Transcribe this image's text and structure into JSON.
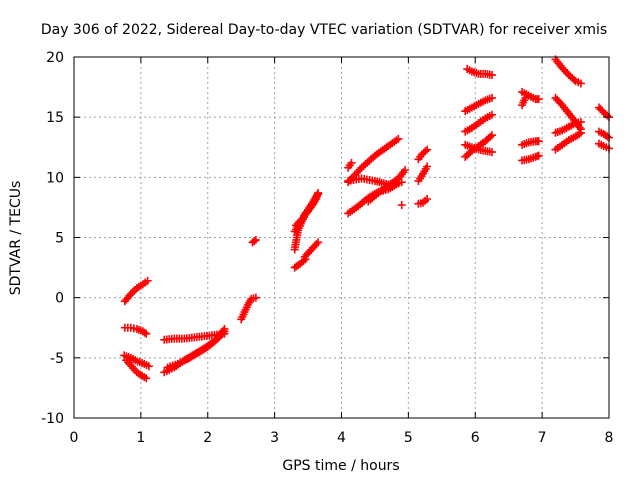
{
  "chart_data": {
    "type": "scatter",
    "title": "Day 306 of 2022, Sidereal Day-to-day VTEC variation (SDTVAR) for receiver xmis",
    "xlabel": "GPS time / hours",
    "ylabel": "SDTVAR / TECUs",
    "xlim": [
      0,
      8
    ],
    "ylim": [
      -10,
      20
    ],
    "xticks": [
      0,
      1,
      2,
      3,
      4,
      5,
      6,
      7,
      8
    ],
    "yticks": [
      -10,
      -5,
      0,
      5,
      10,
      15,
      20
    ],
    "xtick_labels": [
      "0",
      "1",
      "2",
      "3",
      "4",
      "5",
      "6",
      "7",
      "8"
    ],
    "ytick_labels": [
      "-10",
      "-5",
      "0",
      "5",
      "10",
      "15",
      "20"
    ],
    "grid": true,
    "marker": "plus",
    "color": "#ff0000",
    "series": [
      {
        "x": [
          0.76,
          0.85,
          0.94,
          1.03,
          1.1
        ],
        "y": [
          -0.3,
          0.3,
          0.8,
          1.1,
          1.4
        ]
      },
      {
        "x": [
          0.76,
          0.85,
          0.94,
          1.03,
          1.08
        ],
        "y": [
          -2.5,
          -2.5,
          -2.6,
          -2.8,
          -3.0
        ]
      },
      {
        "x": [
          0.75,
          0.85,
          0.95,
          1.05,
          1.12
        ],
        "y": [
          -4.8,
          -5.0,
          -5.3,
          -5.5,
          -5.7
        ]
      },
      {
        "x": [
          0.78,
          0.86,
          0.94,
          1.02,
          1.08
        ],
        "y": [
          -5.2,
          -5.7,
          -6.2,
          -6.5,
          -6.7
        ]
      },
      {
        "x": [
          1.35,
          1.5,
          1.65,
          1.8,
          1.95,
          2.1,
          2.25
        ],
        "y": [
          -6.2,
          -5.8,
          -5.2,
          -4.7,
          -4.2,
          -3.6,
          -2.8
        ]
      },
      {
        "x": [
          1.4,
          1.55,
          1.7,
          1.85,
          2.0,
          2.15,
          2.25
        ],
        "y": [
          -5.8,
          -5.5,
          -5.1,
          -4.6,
          -4.1,
          -3.4,
          -2.6
        ]
      },
      {
        "x": [
          1.35,
          1.5,
          1.65,
          1.8,
          1.95,
          2.1,
          2.25
        ],
        "y": [
          -3.5,
          -3.4,
          -3.4,
          -3.3,
          -3.2,
          -3.1,
          -3.0
        ]
      },
      {
        "x": [
          2.5,
          2.55,
          2.6,
          2.65,
          2.72
        ],
        "y": [
          -1.8,
          -1.2,
          -0.6,
          -0.1,
          0.0
        ]
      },
      {
        "x": [
          2.67,
          2.72
        ],
        "y": [
          4.6,
          4.8
        ]
      },
      {
        "x": [
          3.3,
          3.35,
          3.42,
          3.5,
          3.58,
          3.65
        ],
        "y": [
          4.0,
          5.6,
          6.5,
          7.3,
          8.0,
          8.7
        ]
      },
      {
        "x": [
          3.3,
          3.38,
          3.46,
          3.54,
          3.62
        ],
        "y": [
          5.5,
          6.2,
          7.0,
          7.6,
          8.2
        ]
      },
      {
        "x": [
          3.32,
          3.42,
          3.5,
          3.58,
          3.65
        ],
        "y": [
          6.0,
          6.6,
          7.2,
          7.8,
          8.6
        ]
      },
      {
        "x": [
          3.3,
          3.38,
          3.46
        ],
        "y": [
          2.5,
          2.8,
          3.2
        ]
      },
      {
        "x": [
          3.45,
          3.55,
          3.65
        ],
        "y": [
          3.4,
          4.0,
          4.6
        ]
      },
      {
        "x": [
          4.1,
          4.3,
          4.5,
          4.7,
          4.85
        ],
        "y": [
          9.6,
          10.8,
          11.8,
          12.6,
          13.2
        ]
      },
      {
        "x": [
          4.1,
          4.3,
          4.5,
          4.7,
          4.9
        ],
        "y": [
          9.7,
          9.9,
          9.7,
          9.4,
          9.6
        ]
      },
      {
        "x": [
          4.1,
          4.25,
          4.4,
          4.55,
          4.7,
          4.85
        ],
        "y": [
          7.0,
          7.6,
          8.3,
          8.8,
          9.0,
          9.5
        ]
      },
      {
        "x": [
          4.4,
          4.55,
          4.7,
          4.85,
          4.95
        ],
        "y": [
          8.0,
          8.7,
          9.3,
          9.9,
          10.6
        ]
      },
      {
        "x": [
          4.1,
          4.15
        ],
        "y": [
          10.8,
          11.2
        ]
      },
      {
        "x": [
          4.9
        ],
        "y": [
          7.7
        ]
      },
      {
        "x": [
          5.15,
          5.2,
          5.28
        ],
        "y": [
          11.5,
          11.9,
          12.3
        ]
      },
      {
        "x": [
          5.15,
          5.22,
          5.28
        ],
        "y": [
          9.7,
          10.3,
          10.9
        ]
      },
      {
        "x": [
          5.15,
          5.22,
          5.28
        ],
        "y": [
          7.8,
          7.9,
          8.2
        ]
      },
      {
        "x": [
          5.88,
          5.95,
          6.05,
          6.15,
          6.25
        ],
        "y": [
          19.0,
          18.8,
          18.6,
          18.6,
          18.5
        ]
      },
      {
        "x": [
          5.85,
          5.95,
          6.05,
          6.15,
          6.25
        ],
        "y": [
          15.5,
          15.8,
          16.1,
          16.4,
          16.6
        ]
      },
      {
        "x": [
          5.85,
          5.95,
          6.05,
          6.15,
          6.25
        ],
        "y": [
          13.8,
          14.1,
          14.5,
          14.9,
          15.2
        ]
      },
      {
        "x": [
          5.85,
          5.95,
          6.05,
          6.15,
          6.25
        ],
        "y": [
          11.7,
          12.2,
          12.6,
          13.0,
          13.5
        ]
      },
      {
        "x": [
          5.85,
          5.95,
          6.05,
          6.15,
          6.25
        ],
        "y": [
          12.7,
          12.5,
          12.3,
          12.2,
          12.1
        ]
      },
      {
        "x": [
          6.7,
          6.8,
          6.9,
          6.95
        ],
        "y": [
          17.1,
          16.8,
          16.5,
          16.5
        ]
      },
      {
        "x": [
          6.7,
          6.75
        ],
        "y": [
          16.0,
          16.6
        ]
      },
      {
        "x": [
          6.7,
          6.8,
          6.9,
          6.95
        ],
        "y": [
          12.7,
          12.9,
          13.0,
          13.0
        ]
      },
      {
        "x": [
          6.7,
          6.8,
          6.9,
          6.95
        ],
        "y": [
          11.4,
          11.5,
          11.7,
          11.8
        ]
      },
      {
        "x": [
          7.2,
          7.3,
          7.4,
          7.5,
          7.58
        ],
        "y": [
          19.8,
          19.1,
          18.5,
          18.0,
          17.8
        ]
      },
      {
        "x": [
          7.2,
          7.3,
          7.4,
          7.5,
          7.58
        ],
        "y": [
          16.6,
          16.0,
          15.3,
          14.6,
          14.0
        ]
      },
      {
        "x": [
          7.2,
          7.3,
          7.4,
          7.5,
          7.58
        ],
        "y": [
          13.7,
          13.9,
          14.2,
          14.5,
          14.6
        ]
      },
      {
        "x": [
          7.2,
          7.3,
          7.4,
          7.5,
          7.58
        ],
        "y": [
          12.3,
          12.7,
          13.1,
          13.4,
          13.7
        ]
      },
      {
        "x": [
          7.85,
          7.92,
          8.0
        ],
        "y": [
          15.8,
          15.4,
          15.0
        ]
      },
      {
        "x": [
          7.85,
          7.92,
          8.0
        ],
        "y": [
          13.8,
          13.6,
          13.3
        ]
      },
      {
        "x": [
          7.85,
          7.92,
          8.0
        ],
        "y": [
          12.8,
          12.6,
          12.4
        ]
      }
    ]
  }
}
